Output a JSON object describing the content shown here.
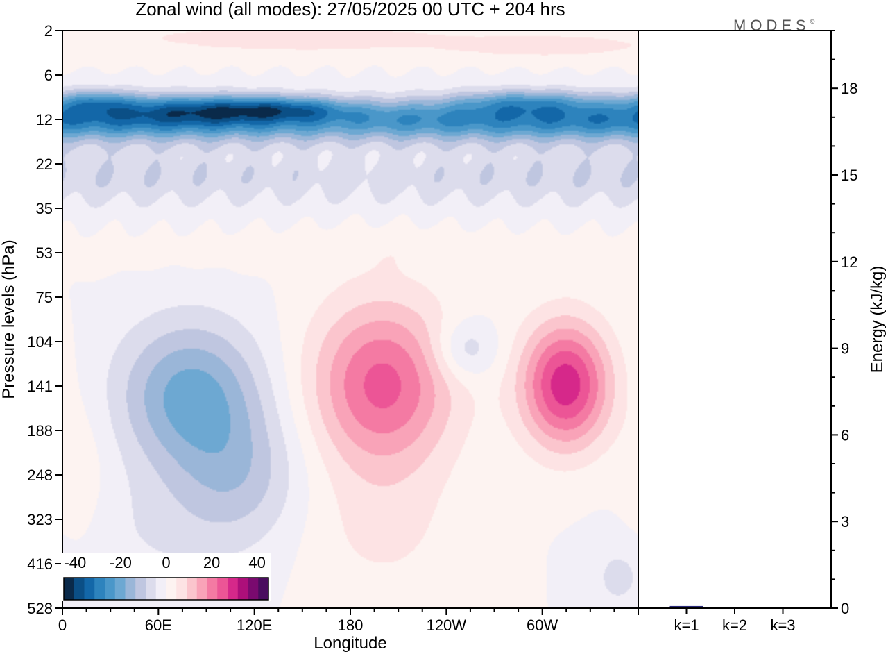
{
  "chart_data": {
    "type": "heatmap",
    "title": "Zonal wind (all modes):  27/05/2025  00 UTC  + 204 hrs",
    "logo": "MODES",
    "logo_mark": "©",
    "xlabel": "Longitude",
    "ylabel": "Pressure levels (hPa)",
    "x_ticks": [
      "0",
      "60E",
      "120E",
      "180",
      "120W",
      "60W"
    ],
    "x_tick_values": [
      0,
      60,
      120,
      180,
      240,
      300
    ],
    "xlim": [
      0,
      360
    ],
    "y_levels": [
      "2",
      "6",
      "12",
      "22",
      "35",
      "53",
      "75",
      "104",
      "141",
      "188",
      "248",
      "323",
      "416",
      "528"
    ],
    "colorbar": {
      "labels": [
        "-40",
        "-20",
        "0",
        "20",
        "40"
      ],
      "label_values": [
        -40,
        -20,
        0,
        20,
        40
      ],
      "range": [
        -45,
        45
      ],
      "colors": [
        "#0a2a4a",
        "#0b4f86",
        "#1367a8",
        "#2d83bd",
        "#4a97c9",
        "#6da8d2",
        "#9ab6d8",
        "#bfc6e0",
        "#dcdcec",
        "#f2eff7",
        "#fdf3f1",
        "#fde3e4",
        "#fbc5cd",
        "#f9a3b8",
        "#f47aa3",
        "#ec5596",
        "#d6288a",
        "#ad0f7a",
        "#7a0a6f",
        "#4a0d5f"
      ]
    },
    "field_features": [
      {
        "lon": 0,
        "p": 2,
        "u": 3,
        "dlon": 400,
        "dp": 1.5
      },
      {
        "lon": 150,
        "p": 2.5,
        "u": 6,
        "dlon": 80,
        "dp": 0.8
      },
      {
        "lon": 300,
        "p": 3,
        "u": 6,
        "dlon": 60,
        "dp": 0.8
      },
      {
        "lon": 0,
        "p": 12,
        "u": -30,
        "dlon": 400,
        "dp": 4
      },
      {
        "lon": 20,
        "p": 9,
        "u": -14,
        "dlon": 25,
        "dp": 2
      },
      {
        "lon": 85,
        "p": 10,
        "u": -16,
        "dlon": 50,
        "dp": 2.5
      },
      {
        "lon": 140,
        "p": 10,
        "u": -14,
        "dlon": 40,
        "dp": 2
      },
      {
        "lon": 290,
        "p": 9,
        "u": -14,
        "dlon": 45,
        "dp": 2
      },
      {
        "lon": 0,
        "p": 25,
        "u": -8,
        "dlon": 400,
        "dp": 10
      },
      {
        "lon": 180,
        "p": 52,
        "u": 2,
        "dlon": 250,
        "dp": 10
      },
      {
        "lon": 80,
        "p": 150,
        "u": -20,
        "dlon": 45,
        "dp": 90
      },
      {
        "lon": 110,
        "p": 250,
        "u": -10,
        "dlon": 40,
        "dp": 120
      },
      {
        "lon": 60,
        "p": 350,
        "u": -4,
        "dlon": 60,
        "dp": 150
      },
      {
        "lon": 200,
        "p": 140,
        "u": 24,
        "dlon": 45,
        "dp": 100
      },
      {
        "lon": 200,
        "p": 350,
        "u": 5,
        "dlon": 50,
        "dp": 180
      },
      {
        "lon": 252,
        "p": 110,
        "u": -10,
        "dlon": 20,
        "dp": 25
      },
      {
        "lon": 315,
        "p": 140,
        "u": 30,
        "dlon": 28,
        "dp": 70
      },
      {
        "lon": 348,
        "p": 450,
        "u": -6,
        "dlon": 15,
        "dp": 150
      },
      {
        "lon": 10,
        "p": 250,
        "u": 4,
        "dlon": 20,
        "dp": 150
      }
    ],
    "energy_axis": {
      "label": "Energy (kJ/kg)",
      "ticks": [
        "0",
        "3",
        "6",
        "9",
        "12",
        "15",
        "18"
      ],
      "ylim": [
        0,
        20
      ]
    },
    "energy_bars": {
      "categories": [
        "k=1",
        "k=2",
        "k=3"
      ],
      "values": [
        0.05,
        0.02,
        0.02
      ],
      "color": "#2a2a7a"
    }
  }
}
